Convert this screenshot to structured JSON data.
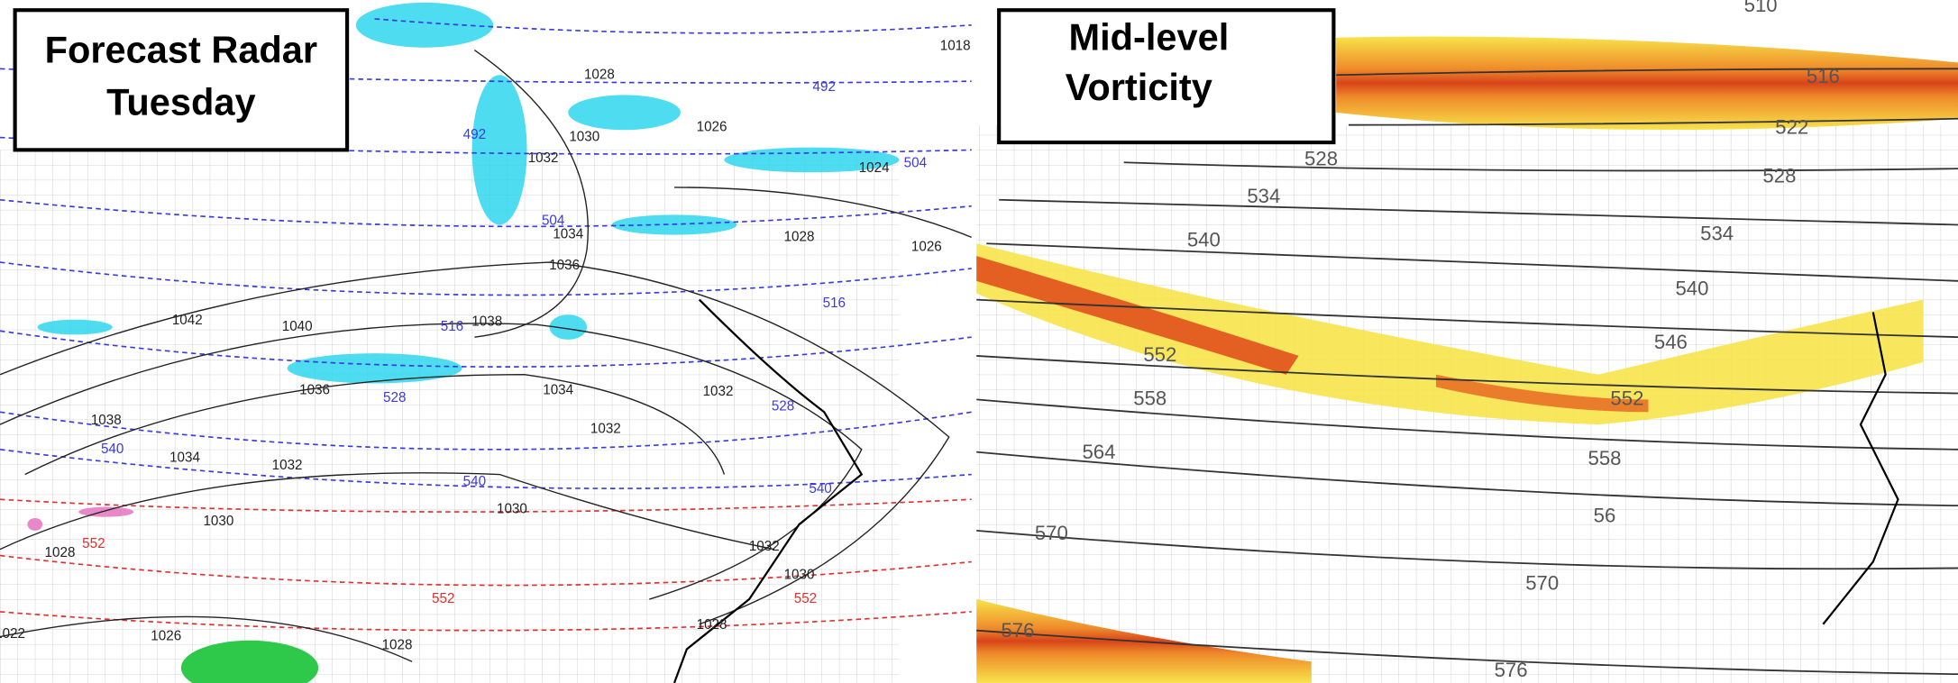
{
  "left_panel": {
    "title_lines": [
      "Forecast Radar",
      "Tuesday"
    ],
    "pressure_labels": [
      "1028",
      "1026",
      "1030",
      "1032",
      "1034",
      "1036",
      "1038",
      "1040",
      "1042",
      "1036",
      "1038",
      "1034",
      "1032",
      "1034",
      "1032",
      "1032",
      "1030",
      "1028",
      "1030",
      "1032",
      "1030",
      "1028",
      "1028",
      "1026",
      "1022",
      "1018",
      "1024",
      "1028",
      "1026"
    ],
    "height_labels": [
      "492",
      "492",
      "504",
      "504",
      "516",
      "516",
      "528",
      "528",
      "540",
      "540",
      "540"
    ],
    "warm_height_labels": [
      "552",
      "552",
      "552"
    ]
  },
  "right_panel": {
    "title_lines": [
      "Mid-level",
      "Vorticity"
    ],
    "height_labels": [
      "510",
      "516",
      "522",
      "528",
      "528",
      "534",
      "534",
      "540",
      "540",
      "546",
      "552",
      "552",
      "558",
      "558",
      "564",
      "56",
      "570",
      "570",
      "576",
      "576"
    ]
  }
}
